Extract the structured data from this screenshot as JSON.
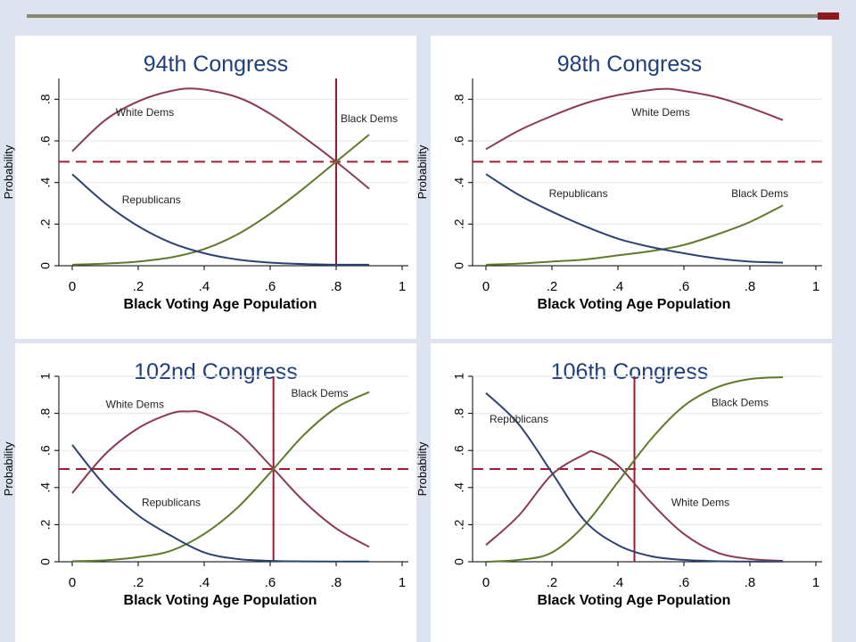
{
  "slide": {
    "colors": {
      "background": "#dde4ef",
      "accent_bar": "#8c1b1b",
      "rule": "#8a8a70"
    }
  },
  "chart_data": [
    {
      "type": "line",
      "title": "94th Congress",
      "xlabel": "Black Voting Age Population",
      "ylabel": "Probability",
      "xlim": [
        0,
        1
      ],
      "ylim": [
        0,
        0.9
      ],
      "xticks": [
        "0",
        ".2",
        ".4",
        ".6",
        ".8",
        "1"
      ],
      "xtick_values": [
        0,
        0.2,
        0.4,
        0.6,
        0.8,
        1
      ],
      "yticks": [
        "0",
        ".2",
        ".4",
        ".6",
        ".8"
      ],
      "ytick_values": [
        0,
        0.2,
        0.4,
        0.6,
        0.8
      ],
      "grid": true,
      "reference_hline": 0.5,
      "reference_vline": 0.8,
      "series": [
        {
          "name": "White Dems",
          "color": "#8b3a52",
          "x": [
            0,
            0.1,
            0.2,
            0.3,
            0.38,
            0.5,
            0.6,
            0.7,
            0.8,
            0.9
          ],
          "y": [
            0.55,
            0.7,
            0.79,
            0.84,
            0.85,
            0.81,
            0.73,
            0.62,
            0.5,
            0.37
          ]
        },
        {
          "name": "Black Dems",
          "color": "#5f7a2a",
          "x": [
            0,
            0.1,
            0.2,
            0.3,
            0.4,
            0.5,
            0.6,
            0.7,
            0.8,
            0.9
          ],
          "y": [
            0.005,
            0.01,
            0.02,
            0.04,
            0.08,
            0.15,
            0.25,
            0.37,
            0.5,
            0.63
          ]
        },
        {
          "name": "Republicans",
          "color": "#2e4272",
          "x": [
            0,
            0.1,
            0.2,
            0.3,
            0.4,
            0.5,
            0.6,
            0.7,
            0.8,
            0.9
          ],
          "y": [
            0.44,
            0.3,
            0.19,
            0.11,
            0.06,
            0.03,
            0.015,
            0.008,
            0.005,
            0.005
          ]
        }
      ],
      "labels": [
        {
          "text": "White Dems",
          "x": 0.22,
          "y": 0.72
        },
        {
          "text": "Black Dems",
          "x": 0.9,
          "y": 0.69
        },
        {
          "text": "Republicans",
          "x": 0.24,
          "y": 0.3
        }
      ]
    },
    {
      "type": "line",
      "title": "98th Congress",
      "xlabel": "Black Voting Age Population",
      "ylabel": "Probability",
      "xlim": [
        0,
        1
      ],
      "ylim": [
        0,
        0.9
      ],
      "xticks": [
        "0",
        ".2",
        ".4",
        ".6",
        ".8",
        "1"
      ],
      "xtick_values": [
        0,
        0.2,
        0.4,
        0.6,
        0.8,
        1
      ],
      "yticks": [
        "0",
        ".2",
        ".4",
        ".6",
        ".8"
      ],
      "ytick_values": [
        0,
        0.2,
        0.4,
        0.6,
        0.8
      ],
      "grid": true,
      "reference_hline": 0.5,
      "series": [
        {
          "name": "White Dems",
          "color": "#8b3a52",
          "x": [
            0,
            0.1,
            0.2,
            0.3,
            0.4,
            0.5,
            0.55,
            0.6,
            0.7,
            0.8,
            0.9
          ],
          "y": [
            0.56,
            0.65,
            0.72,
            0.78,
            0.82,
            0.845,
            0.85,
            0.84,
            0.81,
            0.76,
            0.7
          ]
        },
        {
          "name": "Black Dems",
          "color": "#5f7a2a",
          "x": [
            0,
            0.1,
            0.2,
            0.3,
            0.4,
            0.5,
            0.6,
            0.7,
            0.8,
            0.9
          ],
          "y": [
            0.005,
            0.01,
            0.02,
            0.03,
            0.05,
            0.07,
            0.1,
            0.15,
            0.21,
            0.29
          ]
        },
        {
          "name": "Republicans",
          "color": "#2e4272",
          "x": [
            0,
            0.1,
            0.2,
            0.3,
            0.4,
            0.5,
            0.6,
            0.7,
            0.8,
            0.9
          ],
          "y": [
            0.44,
            0.34,
            0.26,
            0.19,
            0.13,
            0.09,
            0.06,
            0.035,
            0.02,
            0.015
          ]
        }
      ],
      "labels": [
        {
          "text": "White Dems",
          "x": 0.53,
          "y": 0.72
        },
        {
          "text": "Republicans",
          "x": 0.28,
          "y": 0.33
        },
        {
          "text": "Black Dems",
          "x": 0.83,
          "y": 0.33
        }
      ]
    },
    {
      "type": "line",
      "title": "102nd Congress",
      "xlabel": "Black Voting Age Population",
      "ylabel": "Probability",
      "xlim": [
        0,
        1
      ],
      "ylim": [
        0,
        1.0
      ],
      "xticks": [
        "0",
        ".2",
        ".4",
        ".6",
        ".8",
        "1"
      ],
      "xtick_values": [
        0,
        0.2,
        0.4,
        0.6,
        0.8,
        1
      ],
      "yticks": [
        "0",
        ".2",
        ".4",
        ".6",
        ".8",
        "1"
      ],
      "ytick_values": [
        0,
        0.2,
        0.4,
        0.6,
        0.8,
        1
      ],
      "grid": true,
      "reference_hline": 0.5,
      "reference_vline": 0.61,
      "series": [
        {
          "name": "White Dems",
          "color": "#8b3a52",
          "x": [
            0,
            0.1,
            0.2,
            0.3,
            0.35,
            0.4,
            0.5,
            0.6,
            0.7,
            0.8,
            0.9
          ],
          "y": [
            0.37,
            0.58,
            0.72,
            0.8,
            0.81,
            0.8,
            0.7,
            0.52,
            0.33,
            0.18,
            0.08
          ]
        },
        {
          "name": "Black Dems",
          "color": "#5f7a2a",
          "x": [
            0,
            0.1,
            0.2,
            0.3,
            0.4,
            0.5,
            0.6,
            0.7,
            0.8,
            0.9
          ],
          "y": [
            0.003,
            0.008,
            0.025,
            0.06,
            0.15,
            0.29,
            0.48,
            0.68,
            0.83,
            0.915
          ]
        },
        {
          "name": "Republicans",
          "color": "#2e4272",
          "x": [
            0,
            0.1,
            0.2,
            0.3,
            0.4,
            0.5,
            0.6,
            0.7,
            0.8,
            0.9
          ],
          "y": [
            0.63,
            0.41,
            0.25,
            0.14,
            0.05,
            0.015,
            0.005,
            0.002,
            0.001,
            0.001
          ]
        }
      ],
      "labels": [
        {
          "text": "White Dems",
          "x": 0.19,
          "y": 0.83
        },
        {
          "text": "Black Dems",
          "x": 0.75,
          "y": 0.89
        },
        {
          "text": "Republicans",
          "x": 0.3,
          "y": 0.3
        }
      ]
    },
    {
      "type": "line",
      "title": "106th Congress",
      "xlabel": "Black Voting Age Population",
      "ylabel": "Probability",
      "xlim": [
        0,
        1
      ],
      "ylim": [
        0,
        1.0
      ],
      "xticks": [
        "0",
        ".2",
        ".4",
        ".6",
        ".8",
        "1"
      ],
      "xtick_values": [
        0,
        0.2,
        0.4,
        0.6,
        0.8,
        1
      ],
      "yticks": [
        "0",
        ".2",
        ".4",
        ".6",
        ".8",
        "1"
      ],
      "ytick_values": [
        0,
        0.2,
        0.4,
        0.6,
        0.8,
        1
      ],
      "grid": true,
      "reference_hline": 0.5,
      "reference_vline": 0.45,
      "series": [
        {
          "name": "White Dems",
          "color": "#8b3a52",
          "x": [
            0,
            0.1,
            0.2,
            0.3,
            0.33,
            0.4,
            0.5,
            0.6,
            0.7,
            0.8,
            0.9
          ],
          "y": [
            0.09,
            0.25,
            0.47,
            0.58,
            0.59,
            0.52,
            0.32,
            0.15,
            0.05,
            0.015,
            0.005
          ]
        },
        {
          "name": "Black Dems",
          "color": "#5f7a2a",
          "x": [
            0,
            0.1,
            0.2,
            0.3,
            0.4,
            0.5,
            0.6,
            0.7,
            0.8,
            0.9
          ],
          "y": [
            0.0,
            0.01,
            0.05,
            0.2,
            0.43,
            0.66,
            0.84,
            0.94,
            0.985,
            0.995
          ]
        },
        {
          "name": "Republicans",
          "color": "#2e4272",
          "x": [
            0,
            0.1,
            0.2,
            0.3,
            0.4,
            0.5,
            0.6,
            0.7,
            0.8,
            0.9
          ],
          "y": [
            0.91,
            0.74,
            0.48,
            0.22,
            0.09,
            0.03,
            0.01,
            0.003,
            0.001,
            0.001
          ]
        }
      ],
      "labels": [
        {
          "text": "Black Dems",
          "x": 0.77,
          "y": 0.84
        },
        {
          "text": "Republicans",
          "x": 0.1,
          "y": 0.75
        },
        {
          "text": "White Dems",
          "x": 0.65,
          "y": 0.3
        }
      ]
    }
  ]
}
